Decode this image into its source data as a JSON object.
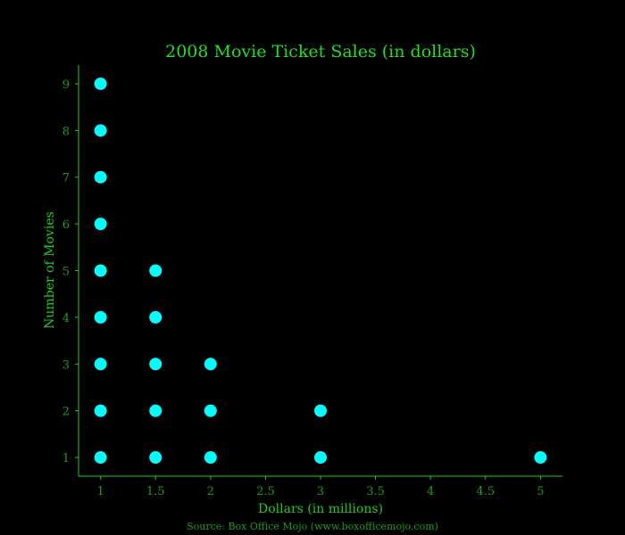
{
  "chart_data": {
    "type": "scatter",
    "title": "2008 Movie Ticket Sales (in dollars)",
    "xlabel": "Dollars (in millions)",
    "ylabel": "Number of Movies",
    "source": "Source: Box Office Mojo (www.boxofficemojo.com)",
    "xlim": [
      0.8,
      5.2
    ],
    "ylim": [
      0.6,
      9.4
    ],
    "xticks": [
      "1",
      "1.5",
      "2",
      "2.5",
      "3",
      "3.5",
      "4",
      "4.5",
      "5"
    ],
    "yticks": [
      "1",
      "2",
      "3",
      "4",
      "5",
      "6",
      "7",
      "8",
      "9"
    ],
    "grid": false,
    "points": [
      {
        "x": 1,
        "y": 1
      },
      {
        "x": 1,
        "y": 2
      },
      {
        "x": 1,
        "y": 3
      },
      {
        "x": 1,
        "y": 4
      },
      {
        "x": 1,
        "y": 5
      },
      {
        "x": 1,
        "y": 6
      },
      {
        "x": 1,
        "y": 7
      },
      {
        "x": 1,
        "y": 8
      },
      {
        "x": 1,
        "y": 9
      },
      {
        "x": 1.5,
        "y": 1
      },
      {
        "x": 1.5,
        "y": 2
      },
      {
        "x": 1.5,
        "y": 3
      },
      {
        "x": 1.5,
        "y": 4
      },
      {
        "x": 1.5,
        "y": 5
      },
      {
        "x": 2,
        "y": 1
      },
      {
        "x": 2,
        "y": 2
      },
      {
        "x": 2,
        "y": 3
      },
      {
        "x": 3,
        "y": 1
      },
      {
        "x": 3,
        "y": 2
      },
      {
        "x": 5,
        "y": 1
      }
    ],
    "colors": {
      "background": "#000000",
      "title": "#22dd22",
      "axis": "#22cc22",
      "tick": "#1f9a1f",
      "source": "#1f9a1f",
      "marker": "#00ffff"
    }
  }
}
